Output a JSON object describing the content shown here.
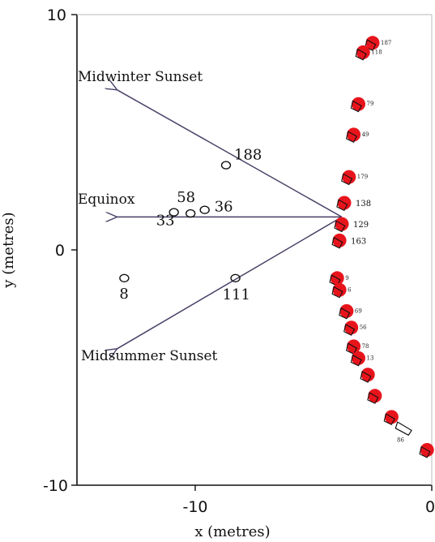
{
  "chart_data": {
    "type": "scatter",
    "title": "",
    "xlabel": "x (metres)",
    "ylabel": "y (metres)",
    "xlim": [
      -15,
      0
    ],
    "ylim": [
      -10,
      10
    ],
    "x_ticks": [
      "-10",
      "0"
    ],
    "y_ticks": [
      "10",
      "0",
      "-10"
    ],
    "grid": false,
    "colors": {
      "axis": "#111111",
      "arrow": "#4a3f66",
      "marker": "#e8141c",
      "stone": "#111111"
    },
    "direction_lines": [
      {
        "name": "Midwinter Sunset",
        "from": [
          -3.8,
          1.4
        ],
        "to": [
          -13.3,
          6.8
        ]
      },
      {
        "name": "Equinox",
        "from": [
          -3.8,
          1.4
        ],
        "to": [
          -13.3,
          1.4
        ]
      },
      {
        "name": "Midsummer Sunset",
        "from": [
          -3.8,
          1.4
        ],
        "to": [
          -13.3,
          -4.2
        ]
      }
    ],
    "direction_labels": [
      "Midwinter Sunset",
      "Equinox",
      "Midsummer Sunset"
    ],
    "inner_stones": [
      {
        "label": "188",
        "x": -8.7,
        "y": 3.6
      },
      {
        "label": "58",
        "x": -10.2,
        "y": 1.55
      },
      {
        "label": "36",
        "x": -9.6,
        "y": 1.7
      },
      {
        "label": "33",
        "x": -10.9,
        "y": 1.6
      },
      {
        "label": "111",
        "x": -8.3,
        "y": -1.2
      },
      {
        "label": "8",
        "x": -13.0,
        "y": -1.2
      }
    ],
    "arc_markers": [
      {
        "label": "187",
        "x": -2.5,
        "y": 8.8
      },
      {
        "label": "118",
        "x": -2.9,
        "y": 8.4
      },
      {
        "label": "79",
        "x": -3.1,
        "y": 6.2
      },
      {
        "label": "49",
        "x": -3.3,
        "y": 4.9
      },
      {
        "label": "179",
        "x": -3.5,
        "y": 3.1
      },
      {
        "label": "138",
        "x": -3.7,
        "y": 2.0
      },
      {
        "label": "129",
        "x": -3.8,
        "y": 1.1
      },
      {
        "label": "163",
        "x": -3.9,
        "y": 0.4
      },
      {
        "label": "9",
        "x": -4.0,
        "y": -1.2
      },
      {
        "label": "6",
        "x": -3.9,
        "y": -1.7
      },
      {
        "label": "69",
        "x": -3.6,
        "y": -2.6
      },
      {
        "label": "56",
        "x": -3.4,
        "y": -3.3
      },
      {
        "label": "78",
        "x": -3.3,
        "y": -4.1
      },
      {
        "label": "13",
        "x": -3.1,
        "y": -4.6
      },
      {
        "label": "",
        "x": -2.7,
        "y": -5.3
      },
      {
        "label": "",
        "x": -2.4,
        "y": -6.2
      },
      {
        "label": "",
        "x": -1.7,
        "y": -7.1
      },
      {
        "label": "",
        "x": -0.2,
        "y": -8.5
      }
    ],
    "arc_outline_only": [
      {
        "label": "86",
        "x": -1.2,
        "y": -7.6
      }
    ]
  }
}
